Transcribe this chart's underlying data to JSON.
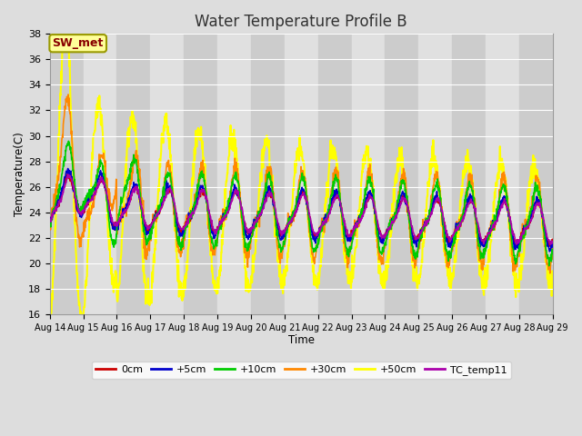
{
  "title": "Water Temperature Profile B",
  "xlabel": "Time",
  "ylabel": "Temperature(C)",
  "ylim": [
    16,
    38
  ],
  "yticks": [
    16,
    18,
    20,
    22,
    24,
    26,
    28,
    30,
    32,
    34,
    36,
    38
  ],
  "plot_bg_color": "#dddddd",
  "fig_bg_color": "#dddddd",
  "series": [
    "0cm",
    "+5cm",
    "+10cm",
    "+30cm",
    "+50cm",
    "TC_temp11"
  ],
  "colors": [
    "#cc0000",
    "#0000cc",
    "#00cc00",
    "#ff8800",
    "#ffff00",
    "#aa00aa"
  ],
  "annotation_text": "SW_met",
  "annotation_color": "#880000",
  "annotation_bg": "#ffff99",
  "annotation_border": "#999900",
  "tick_labels": [
    "Aug 14",
    "Aug 15",
    "Aug 16",
    "Aug 17",
    "Aug 18",
    "Aug 19",
    "Aug 20",
    "Aug 21",
    "Aug 22",
    "Aug 23",
    "Aug 24",
    "Aug 25",
    "Aug 26",
    "Aug 27",
    "Aug 28",
    "Aug 29"
  ],
  "grid_color": "#ffffff",
  "title_fontsize": 12,
  "title_color": "#333333"
}
